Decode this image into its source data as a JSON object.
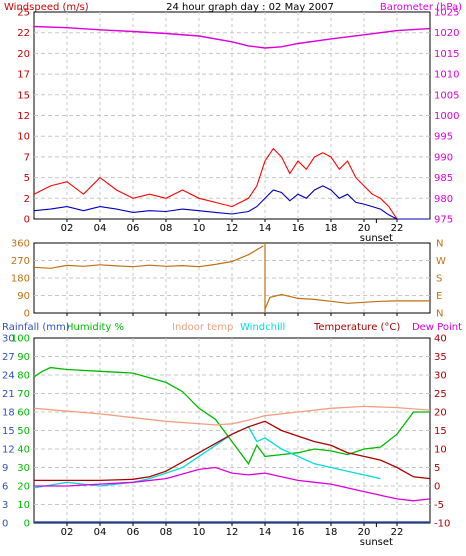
{
  "colors": {
    "windspeed": "#cc0000",
    "gust": "#ff0000",
    "wind_avg": "#0000bb",
    "barometer": "#dd00dd",
    "direction": "#c07010",
    "humidity": "#00bb00",
    "indoor_temp": "#f0a080",
    "windchill": "#00dddd",
    "temperature": "#aa0000",
    "dewpoint": "#dd00dd",
    "rainfall": "#3050c0",
    "axis": "#000000",
    "grid": "#c8c8c8"
  },
  "chart_data": [
    {
      "type": "line",
      "title": "24 hour graph day : 02 May 2007",
      "left_label": "Windspeed (m/s)",
      "right_label": "Barometer (hPa)",
      "ylim_left": [
        0,
        25
      ],
      "yticks_left": [
        "0",
        "2",
        "5",
        "7",
        "10",
        "12",
        "15",
        "17",
        "20",
        "22",
        "25"
      ],
      "ylim_right": [
        975,
        1025
      ],
      "yticks_right": [
        "975",
        "980",
        "985",
        "990",
        "995",
        "1000",
        "1005",
        "1010",
        "1015",
        "1020",
        "1025"
      ],
      "xlim": [
        0,
        24
      ],
      "xticks": [
        "02",
        "04",
        "06",
        "08",
        "10",
        "12",
        "14",
        "16",
        "18",
        "20",
        "22"
      ],
      "xlabel_marker": "sunset",
      "series": [
        {
          "key": "barometer",
          "axis": "right",
          "x": [
            0,
            2,
            4,
            6,
            8,
            10,
            12,
            13,
            14,
            15,
            16,
            18,
            20,
            22,
            24
          ],
          "y": [
            1021.5,
            1021.2,
            1020.7,
            1020.3,
            1019.8,
            1019.2,
            1017.8,
            1016.8,
            1016.3,
            1016.6,
            1017.4,
            1018.5,
            1019.5,
            1020.5,
            1021.0
          ]
        },
        {
          "key": "gust",
          "axis": "left",
          "x": [
            0,
            1,
            2,
            3,
            4,
            5,
            6,
            7,
            8,
            9,
            10,
            11,
            12,
            13,
            13.5,
            14,
            14.5,
            15,
            15.5,
            16,
            16.5,
            17,
            17.5,
            18,
            18.5,
            19,
            19.5,
            20,
            20.5,
            21,
            21.5,
            22,
            23,
            24
          ],
          "y": [
            3,
            4,
            4.5,
            3,
            5,
            3.5,
            2.5,
            3,
            2.5,
            3.5,
            2.5,
            2,
            1.5,
            2.5,
            4,
            7,
            8.5,
            7.5,
            5.5,
            7,
            6,
            7.5,
            8,
            7.5,
            6,
            7,
            5,
            4,
            3,
            2.5,
            1.5,
            0,
            0,
            0
          ]
        },
        {
          "key": "wind_avg",
          "axis": "left",
          "x": [
            0,
            1,
            2,
            3,
            4,
            5,
            6,
            7,
            8,
            9,
            10,
            11,
            12,
            13,
            13.5,
            14,
            14.5,
            15,
            15.5,
            16,
            16.5,
            17,
            17.5,
            18,
            18.5,
            19,
            19.5,
            20,
            20.5,
            21,
            21.5,
            22,
            23,
            24
          ],
          "y": [
            1,
            1.2,
            1.5,
            1,
            1.5,
            1.2,
            0.8,
            1,
            0.9,
            1.2,
            1,
            0.8,
            0.6,
            0.9,
            1.5,
            2.5,
            3.5,
            3.2,
            2.2,
            3,
            2.5,
            3.5,
            4,
            3.5,
            2.5,
            3,
            2,
            1.8,
            1.5,
            1.2,
            0.5,
            0,
            0,
            0
          ]
        }
      ]
    },
    {
      "type": "line",
      "yticks_left": [
        "0",
        "90",
        "180",
        "270",
        "360"
      ],
      "ylim_left": [
        0,
        360
      ],
      "yticks_right": [
        "N",
        "E",
        "S",
        "W",
        "N"
      ],
      "xlim": [
        0,
        24
      ],
      "series": [
        {
          "key": "direction",
          "axis": "left",
          "x": [
            0,
            1,
            2,
            3,
            4,
            5,
            6,
            7,
            8,
            9,
            10,
            11,
            12,
            13,
            13.9,
            14,
            14.3,
            15,
            16,
            17,
            18,
            19,
            20,
            21,
            22,
            23,
            24
          ],
          "y": [
            235,
            230,
            245,
            240,
            248,
            242,
            238,
            246,
            240,
            244,
            238,
            250,
            265,
            300,
            345,
            20,
            80,
            95,
            75,
            70,
            60,
            50,
            55,
            60,
            62,
            62,
            62
          ]
        }
      ]
    },
    {
      "type": "line",
      "labels": {
        "rainfall": "Rainfall (mm)",
        "humidity": "Humidity %",
        "indoor_temp": "Indoor temp",
        "windchill": "Windchill",
        "temperature": "Temperature (°C)",
        "dewpoint": "Dew Point"
      },
      "ylim_humidity": [
        0,
        100
      ],
      "yticks_humidity": [
        "0",
        "10",
        "20",
        "30",
        "40",
        "50",
        "60",
        "70",
        "80",
        "90",
        "100"
      ],
      "ylim_rain": [
        0,
        30
      ],
      "yticks_rain": [
        "0",
        "3",
        "6",
        "9",
        "12",
        "15",
        "18",
        "21",
        "24",
        "27",
        "30"
      ],
      "ylim_temp": [
        -10,
        40
      ],
      "yticks_temp": [
        "-10",
        "-5",
        "0",
        "5",
        "10",
        "15",
        "20",
        "25",
        "30",
        "35",
        "40"
      ],
      "xlim": [
        0,
        24
      ],
      "xticks": [
        "02",
        "04",
        "06",
        "08",
        "10",
        "12",
        "14",
        "16",
        "18",
        "20",
        "22"
      ],
      "xlabel_marker": "sunset",
      "series": [
        {
          "key": "humidity",
          "axis": "humidity",
          "x": [
            0,
            0.5,
            1,
            2,
            4,
            6,
            8,
            9,
            10,
            11,
            12,
            13,
            13.5,
            14,
            15,
            16,
            17,
            18,
            19,
            20,
            21,
            22,
            23,
            24
          ],
          "y": [
            79,
            82,
            84,
            83,
            82,
            81,
            76,
            71,
            62,
            56,
            44,
            32,
            42,
            36,
            37,
            38,
            40,
            39,
            37,
            40,
            41,
            48,
            60,
            60
          ]
        },
        {
          "key": "indoor_temp",
          "axis": "temp",
          "x": [
            0,
            4,
            8,
            11,
            12,
            13,
            14,
            16,
            18,
            20,
            22,
            24
          ],
          "y": [
            21,
            19.5,
            17.5,
            16.5,
            16.8,
            17.8,
            19,
            20,
            21,
            21.5,
            21.2,
            20.5
          ]
        },
        {
          "key": "windchill",
          "axis": "temp",
          "x": [
            0,
            2,
            4,
            6,
            7,
            8,
            9,
            10,
            11,
            12,
            13,
            13.5,
            14,
            15,
            16,
            17,
            18,
            19,
            20,
            21
          ],
          "y": [
            -0.5,
            1,
            0,
            1,
            2,
            3.5,
            5,
            8,
            11,
            14,
            16,
            12,
            13,
            10,
            8,
            6,
            5,
            4,
            3,
            2
          ]
        },
        {
          "key": "temperature",
          "axis": "temp",
          "x": [
            0,
            2,
            4,
            6,
            7,
            8,
            9,
            10,
            11,
            12,
            13,
            14,
            15,
            16,
            17,
            18,
            19,
            20,
            21,
            22,
            23,
            24
          ],
          "y": [
            1.5,
            1.5,
            1.5,
            1.8,
            2.5,
            4,
            6.5,
            9,
            11.5,
            14,
            16,
            17.5,
            15,
            13.5,
            12,
            11,
            9,
            8,
            7,
            5,
            2.5,
            2
          ]
        },
        {
          "key": "dewpoint",
          "axis": "temp",
          "x": [
            0,
            2,
            4,
            6,
            8,
            10,
            11,
            12,
            13,
            14,
            15,
            16,
            17,
            18,
            19,
            20,
            21,
            22,
            23,
            24
          ],
          "y": [
            0,
            0,
            0.5,
            1,
            2,
            4.5,
            5,
            3.5,
            3,
            3.5,
            2.5,
            1.5,
            1,
            0.5,
            -0.5,
            -1.5,
            -2.5,
            -3.5,
            -4,
            -3.5
          ]
        }
      ]
    }
  ]
}
